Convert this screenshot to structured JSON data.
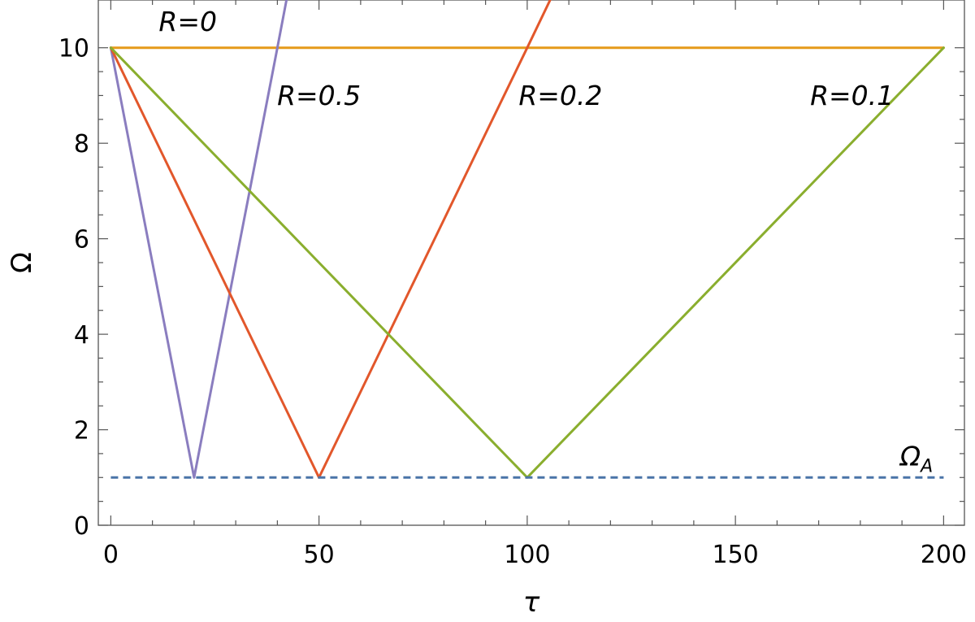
{
  "chart_data": {
    "type": "line",
    "title": "",
    "xlabel": "τ",
    "ylabel": "Ω",
    "xlim": [
      -3,
      205
    ],
    "ylim": [
      0,
      11
    ],
    "x_ticks": [
      0,
      50,
      100,
      150,
      200
    ],
    "x_tick_labels": [
      "0",
      "50",
      "100",
      "150",
      "200"
    ],
    "y_ticks": [
      0,
      2,
      4,
      6,
      8,
      10
    ],
    "y_tick_labels": [
      "0",
      "2",
      "4",
      "6",
      "8",
      "10"
    ],
    "grid": false,
    "series": [
      {
        "name": "R=0",
        "color": "#E59A1A",
        "points": [
          [
            0,
            10
          ],
          [
            200,
            10
          ]
        ]
      },
      {
        "name": "R=0.5",
        "color": "#8A7DBF",
        "points": [
          [
            0,
            10
          ],
          [
            5,
            7.75
          ],
          [
            10,
            5.5
          ],
          [
            15,
            3.25
          ],
          [
            18,
            1.9
          ],
          [
            20,
            1
          ],
          [
            22,
            1.9
          ],
          [
            25,
            3.25
          ],
          [
            30,
            5.5
          ],
          [
            35,
            7.75
          ],
          [
            40,
            10
          ],
          [
            42.2,
            11
          ]
        ]
      },
      {
        "name": "R=0.2",
        "color": "#E2572B",
        "points": [
          [
            0,
            10
          ],
          [
            10,
            8.2
          ],
          [
            20,
            6.4
          ],
          [
            30,
            4.6
          ],
          [
            40,
            2.8
          ],
          [
            45,
            1.9
          ],
          [
            50,
            1
          ],
          [
            55,
            1.9
          ],
          [
            60,
            2.8
          ],
          [
            70,
            4.6
          ],
          [
            80,
            6.4
          ],
          [
            90,
            8.2
          ],
          [
            100,
            10
          ],
          [
            105.5,
            11
          ]
        ]
      },
      {
        "name": "R=0.1",
        "color": "#8AAE2E",
        "points": [
          [
            0,
            10
          ],
          [
            20,
            8.2
          ],
          [
            40,
            6.4
          ],
          [
            60,
            4.6
          ],
          [
            80,
            2.8
          ],
          [
            90,
            1.9
          ],
          [
            100,
            1
          ],
          [
            110,
            1.9
          ],
          [
            120,
            2.8
          ],
          [
            140,
            4.6
          ],
          [
            160,
            6.4
          ],
          [
            180,
            8.2
          ],
          [
            200,
            10
          ]
        ]
      },
      {
        "name": "ΩA",
        "color": "#4A74A8",
        "dashed": true,
        "points": [
          [
            0,
            1
          ],
          [
            200,
            1
          ]
        ]
      }
    ],
    "annotations": [
      {
        "text": "R=0",
        "x": 18.5,
        "y": 10.35
      },
      {
        "text": "R=0.5",
        "x": 50,
        "y": 8.8
      },
      {
        "text": "R=0.2",
        "x": 108,
        "y": 8.8
      },
      {
        "text": "R=0.1",
        "x": 178,
        "y": 8.8
      },
      {
        "text": "Ω",
        "sub": "A",
        "x": 193.5,
        "y": 1.25
      }
    ]
  }
}
